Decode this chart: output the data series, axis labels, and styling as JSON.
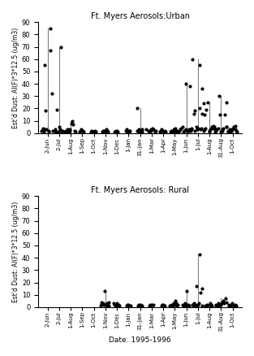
{
  "title_urban": "Ft. Myers Aerosols:Urban",
  "title_rural": "Ft. Myers Aerosols: Rural",
  "xlabel": "Date: 1995-1996",
  "ylabel": "Est'd Dust: Al(F)*3*12.5 (ug/m3)",
  "ylim": [
    0,
    90
  ],
  "yticks": [
    0,
    10,
    20,
    30,
    40,
    50,
    60,
    70,
    80,
    90
  ],
  "xtick_labels": [
    "2-Jun",
    "2-Jul",
    "1-Aug",
    "1-Sep",
    "1-Oct",
    "1-Nov",
    "1-Dec",
    "1-Jan",
    "31-Jan",
    "1-Mar",
    "1-Apr",
    "1-May",
    "1-Jun",
    "1-Jul",
    "1-Aug",
    "31-Aug",
    "1-Oct"
  ],
  "urban_data": [
    [
      0,
      [
        2,
        4,
        1,
        3,
        55,
        18,
        3,
        1,
        2,
        85,
        67,
        32,
        2
      ]
    ],
    [
      1,
      [
        2,
        3,
        1,
        19,
        1,
        5,
        3,
        70,
        1,
        2
      ]
    ],
    [
      2,
      [
        1,
        2,
        1,
        3,
        1,
        2,
        3,
        8,
        10,
        7,
        2,
        1
      ]
    ],
    [
      3,
      [
        1,
        2,
        3,
        1,
        2,
        1
      ]
    ],
    [
      4,
      [
        1,
        2,
        1,
        1,
        2,
        1
      ]
    ],
    [
      5,
      [
        1,
        2,
        2,
        1,
        3,
        2,
        1
      ]
    ],
    [
      6,
      [
        1,
        2,
        1,
        2,
        1
      ]
    ],
    [
      7,
      [
        2,
        3,
        1,
        2,
        1,
        2
      ]
    ],
    [
      8,
      [
        2,
        20,
        1,
        3,
        2,
        1,
        3
      ]
    ],
    [
      9,
      [
        3,
        2,
        1,
        2,
        3,
        2,
        4,
        3,
        1,
        2
      ]
    ],
    [
      10,
      [
        1,
        2,
        3,
        2,
        1,
        2,
        1
      ]
    ],
    [
      11,
      [
        1,
        2,
        1,
        3,
        2,
        4,
        1,
        2,
        1
      ]
    ],
    [
      12,
      [
        2,
        3,
        4,
        5,
        1,
        2,
        3,
        40,
        1,
        2,
        3,
        38,
        2,
        3
      ]
    ],
    [
      13,
      [
        3,
        4,
        60,
        16,
        18,
        2,
        5,
        3,
        4,
        55,
        20,
        3,
        4,
        36,
        24,
        15
      ]
    ],
    [
      14,
      [
        16,
        2,
        3,
        4,
        19,
        25,
        1,
        2,
        3,
        4,
        5,
        6,
        4,
        3
      ]
    ],
    [
      15,
      [
        5,
        1,
        2,
        3,
        4,
        30,
        15,
        1,
        2,
        3,
        4,
        15,
        25,
        5
      ]
    ],
    [
      16,
      [
        5,
        1,
        2,
        3,
        1,
        2,
        3,
        4,
        5,
        6,
        3,
        2,
        1
      ]
    ]
  ],
  "rural_data": [
    [
      0,
      []
    ],
    [
      1,
      []
    ],
    [
      2,
      []
    ],
    [
      3,
      []
    ],
    [
      4,
      []
    ],
    [
      5,
      [
        1,
        2,
        4,
        3,
        2,
        13,
        2,
        1,
        3,
        4,
        1
      ]
    ],
    [
      6,
      [
        3,
        2,
        1,
        2,
        3,
        2,
        1
      ]
    ],
    [
      7,
      [
        1,
        2,
        1,
        2,
        1
      ]
    ],
    [
      8,
      [
        1,
        2,
        1,
        2,
        1
      ]
    ],
    [
      9,
      [
        1,
        2,
        1,
        2,
        1,
        2
      ]
    ],
    [
      10,
      [
        1,
        2,
        1,
        2,
        1
      ]
    ],
    [
      11,
      [
        1,
        2,
        1,
        3,
        2,
        5,
        3,
        1,
        2
      ]
    ],
    [
      12,
      [
        2,
        1,
        3,
        1,
        2,
        13,
        2,
        1
      ]
    ],
    [
      13,
      [
        2,
        1,
        3,
        2,
        17,
        1,
        2,
        3,
        43,
        12,
        15,
        1
      ]
    ],
    [
      14,
      [
        1,
        2,
        1,
        2,
        3,
        1,
        2,
        1
      ]
    ],
    [
      15,
      [
        1,
        2,
        1,
        3,
        2,
        1,
        2,
        3,
        4,
        5,
        3,
        7,
        4
      ]
    ],
    [
      16,
      [
        1,
        2,
        1,
        2,
        3,
        2,
        1,
        2,
        1
      ]
    ]
  ]
}
